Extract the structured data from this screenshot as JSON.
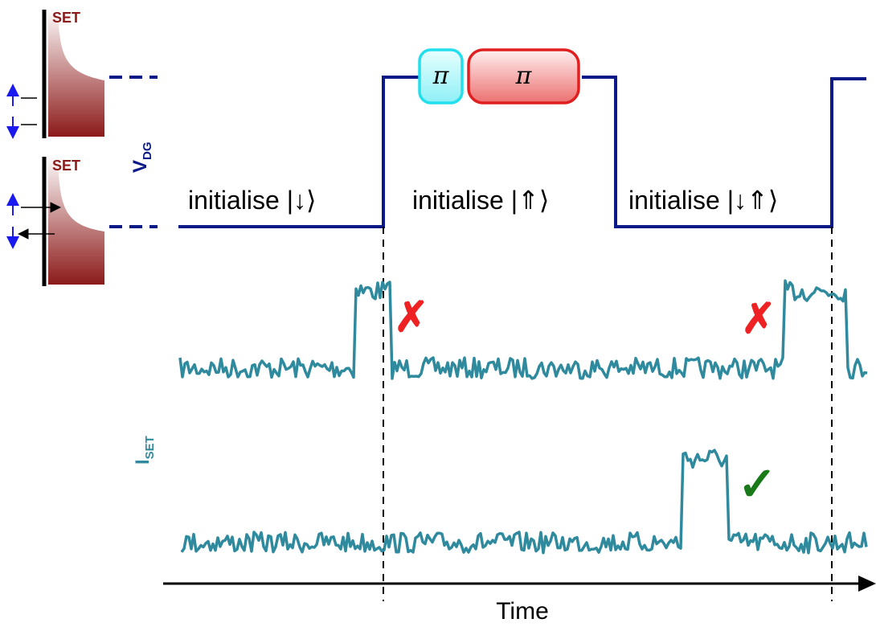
{
  "set_label": "SET",
  "vdg_axis": {
    "main": "V",
    "sub": "DG"
  },
  "iset_axis": {
    "main": "I",
    "sub": "SET"
  },
  "pulses": {
    "first": "π",
    "second": "π"
  },
  "phases": [
    {
      "label": "initialise |↓⟩"
    },
    {
      "label": "initialise |⇑⟩"
    },
    {
      "label": "initialise |↓⇑⟩"
    }
  ],
  "time_label": "Time",
  "outcomes": {
    "fail": "✗",
    "success": "✓"
  },
  "colors": {
    "gate_line": "#0b1a87",
    "trace": "#2f8a9e",
    "reservoir": "#8b1a1a",
    "pulse_cyan": "#33e0ee",
    "pulse_red": "#e83030",
    "fail": "#ee2222",
    "success": "#1a7a1a"
  }
}
